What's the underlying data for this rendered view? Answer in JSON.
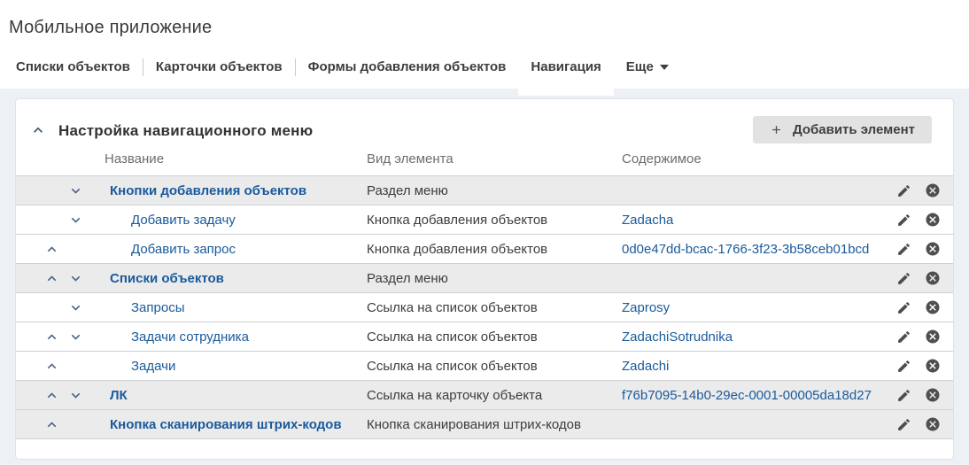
{
  "page": {
    "title": "Мобильное приложение"
  },
  "tabs": [
    {
      "label": "Списки объектов",
      "active": false,
      "sep_after": true,
      "dropdown": false
    },
    {
      "label": "Карточки объектов",
      "active": false,
      "sep_after": true,
      "dropdown": false
    },
    {
      "label": "Формы добавления объектов",
      "active": false,
      "sep_after": false,
      "dropdown": false
    },
    {
      "label": "Навигация",
      "active": true,
      "sep_after": false,
      "dropdown": false
    },
    {
      "label": "Еще",
      "active": false,
      "sep_after": false,
      "dropdown": true
    }
  ],
  "panel": {
    "title": "Настройка навигационного меню",
    "add_button_label": "Добавить элемент",
    "columns": [
      "Название",
      "Вид элемента",
      "Содержимое"
    ],
    "rows": [
      {
        "name": "Кнопки добавления объектов",
        "type": "Раздел меню",
        "content": "",
        "section": true,
        "up": false,
        "down": true
      },
      {
        "name": "Добавить задачу",
        "type": "Кнопка добавления объектов",
        "content": "Zadacha",
        "section": false,
        "up": false,
        "down": true
      },
      {
        "name": "Добавить запрос",
        "type": "Кнопка добавления объектов",
        "content": "0d0e47dd-bcac-1766-3f23-3b58ceb01bcd",
        "section": false,
        "up": true,
        "down": false
      },
      {
        "name": "Списки объектов",
        "type": "Раздел меню",
        "content": "",
        "section": true,
        "up": true,
        "down": true
      },
      {
        "name": "Запросы",
        "type": "Ссылка на список объектов",
        "content": "Zaprosy",
        "section": false,
        "up": false,
        "down": true
      },
      {
        "name": "Задачи сотрудника",
        "type": "Ссылка на список объектов",
        "content": "ZadachiSotrudnika",
        "section": false,
        "up": true,
        "down": true
      },
      {
        "name": "Задачи",
        "type": "Ссылка на список объектов",
        "content": "Zadachi",
        "section": false,
        "up": true,
        "down": false
      },
      {
        "name": "ЛК",
        "type": "Ссылка на карточку объекта",
        "content": "f76b7095-14b0-29ec-0001-00005da18d27",
        "section": true,
        "up": true,
        "down": true
      },
      {
        "name": "Кнопка сканирования штрих-кодов",
        "type": "Кнопка сканирования штрих-кодов",
        "content": "",
        "section": true,
        "up": true,
        "down": false
      }
    ]
  },
  "colors": {
    "link_blue": "#1a5a9b",
    "page_background": "#edf0f4",
    "section_row_background": "#ebebeb",
    "row_border": "#cdd1d5",
    "arrow": "#4c617c",
    "icon": "#4d4d4d",
    "button_background": "#e2e2e2"
  }
}
